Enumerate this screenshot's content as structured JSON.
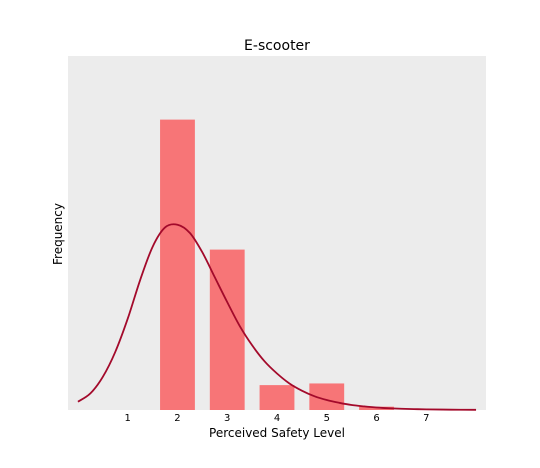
{
  "chart_data": {
    "type": "bar",
    "title": "E-scooter",
    "xlabel": "Perceived Safety Level",
    "ylabel": "Frequency",
    "categories": [
      "1",
      "2",
      "3",
      "4",
      "5",
      "6",
      "7"
    ],
    "series": [
      {
        "values": [
          0,
          0.525,
          0.29,
          0.045,
          0.048,
          0.006,
          0
        ]
      }
    ],
    "density_curve": {
      "x": [
        0.0,
        0.25,
        0.5,
        0.75,
        1.0,
        1.25,
        1.5,
        1.75,
        2.0,
        2.25,
        2.5,
        2.75,
        3.0,
        3.25,
        3.5,
        3.75,
        4.0,
        4.25,
        4.5,
        4.75,
        5.0,
        5.25,
        5.5,
        5.75,
        6.0,
        6.25,
        6.5,
        6.75,
        7.0,
        7.5,
        8.0
      ],
      "y": [
        0.015,
        0.03,
        0.06,
        0.105,
        0.165,
        0.235,
        0.295,
        0.33,
        0.335,
        0.32,
        0.285,
        0.24,
        0.195,
        0.152,
        0.117,
        0.088,
        0.066,
        0.048,
        0.035,
        0.025,
        0.018,
        0.013,
        0.009,
        0.0065,
        0.0045,
        0.0032,
        0.0023,
        0.0016,
        0.0012,
        0.0006,
        0.0003
      ]
    },
    "xlim": [
      -0.2,
      8.2
    ],
    "ylim": [
      0,
      0.64
    ],
    "grid": false,
    "colors": {
      "plot_background": "#ececec",
      "bar": "#f77577",
      "curve": "#a30a2b"
    }
  }
}
